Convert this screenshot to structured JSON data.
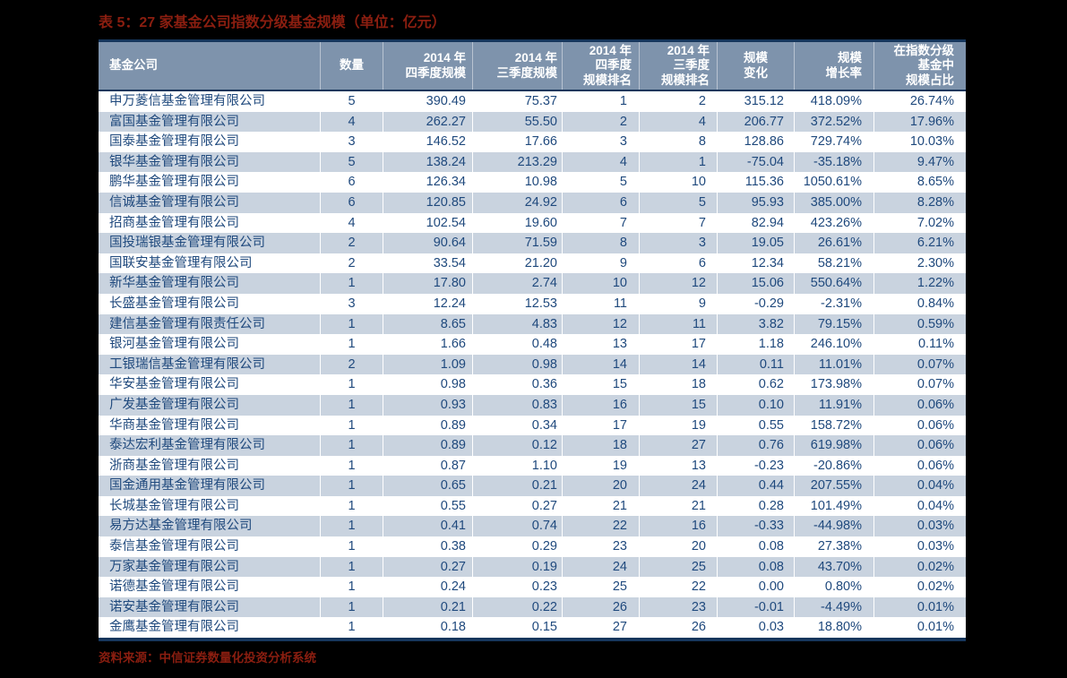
{
  "title": "表 5：27 家基金公司指数分级基金规模（单位：亿元）",
  "source_note": "资料来源：中信证券数量化投资分析系统",
  "colors": {
    "page_background": "#000000",
    "title_red": "#8B1E10",
    "header_background": "#7E93AC",
    "header_text": "#FFFFFF",
    "border_navy": "#16365C",
    "row_white": "#FFFFFF",
    "row_alt_blue": "#C9D3DF",
    "cell_text_navy": "#1F497D"
  },
  "table": {
    "headers": [
      "基金公司",
      "数量",
      "2014 年\n四季度规模",
      "2014 年\n三季度规模",
      "2014 年\n四季度\n规模排名",
      "2014 年\n三季度\n规模排名",
      "规模\n变化",
      "规模\n增长率",
      "在指数分级\n基金中\n规模占比"
    ],
    "rows": [
      [
        "申万菱信基金管理有限公司",
        "5",
        "390.49",
        "75.37",
        "1",
        "2",
        "315.12",
        "418.09%",
        "26.74%"
      ],
      [
        "富国基金管理有限公司",
        "4",
        "262.27",
        "55.50",
        "2",
        "4",
        "206.77",
        "372.52%",
        "17.96%"
      ],
      [
        "国泰基金管理有限公司",
        "3",
        "146.52",
        "17.66",
        "3",
        "8",
        "128.86",
        "729.74%",
        "10.03%"
      ],
      [
        "银华基金管理有限公司",
        "5",
        "138.24",
        "213.29",
        "4",
        "1",
        "-75.04",
        "-35.18%",
        "9.47%"
      ],
      [
        "鹏华基金管理有限公司",
        "6",
        "126.34",
        "10.98",
        "5",
        "10",
        "115.36",
        "1050.61%",
        "8.65%"
      ],
      [
        "信诚基金管理有限公司",
        "6",
        "120.85",
        "24.92",
        "6",
        "5",
        "95.93",
        "385.00%",
        "8.28%"
      ],
      [
        "招商基金管理有限公司",
        "4",
        "102.54",
        "19.60",
        "7",
        "7",
        "82.94",
        "423.26%",
        "7.02%"
      ],
      [
        "国投瑞银基金管理有限公司",
        "2",
        "90.64",
        "71.59",
        "8",
        "3",
        "19.05",
        "26.61%",
        "6.21%"
      ],
      [
        "国联安基金管理有限公司",
        "2",
        "33.54",
        "21.20",
        "9",
        "6",
        "12.34",
        "58.21%",
        "2.30%"
      ],
      [
        "新华基金管理有限公司",
        "1",
        "17.80",
        "2.74",
        "10",
        "12",
        "15.06",
        "550.64%",
        "1.22%"
      ],
      [
        "长盛基金管理有限公司",
        "3",
        "12.24",
        "12.53",
        "11",
        "9",
        "-0.29",
        "-2.31%",
        "0.84%"
      ],
      [
        "建信基金管理有限责任公司",
        "1",
        "8.65",
        "4.83",
        "12",
        "11",
        "3.82",
        "79.15%",
        "0.59%"
      ],
      [
        "银河基金管理有限公司",
        "1",
        "1.66",
        "0.48",
        "13",
        "17",
        "1.18",
        "246.10%",
        "0.11%"
      ],
      [
        "工银瑞信基金管理有限公司",
        "2",
        "1.09",
        "0.98",
        "14",
        "14",
        "0.11",
        "11.01%",
        "0.07%"
      ],
      [
        "华安基金管理有限公司",
        "1",
        "0.98",
        "0.36",
        "15",
        "18",
        "0.62",
        "173.98%",
        "0.07%"
      ],
      [
        "广发基金管理有限公司",
        "1",
        "0.93",
        "0.83",
        "16",
        "15",
        "0.10",
        "11.91%",
        "0.06%"
      ],
      [
        "华商基金管理有限公司",
        "1",
        "0.89",
        "0.34",
        "17",
        "19",
        "0.55",
        "158.72%",
        "0.06%"
      ],
      [
        "泰达宏利基金管理有限公司",
        "1",
        "0.89",
        "0.12",
        "18",
        "27",
        "0.76",
        "619.98%",
        "0.06%"
      ],
      [
        "浙商基金管理有限公司",
        "1",
        "0.87",
        "1.10",
        "19",
        "13",
        "-0.23",
        "-20.86%",
        "0.06%"
      ],
      [
        "国金通用基金管理有限公司",
        "1",
        "0.65",
        "0.21",
        "20",
        "24",
        "0.44",
        "207.55%",
        "0.04%"
      ],
      [
        "长城基金管理有限公司",
        "1",
        "0.55",
        "0.27",
        "21",
        "21",
        "0.28",
        "101.49%",
        "0.04%"
      ],
      [
        "易方达基金管理有限公司",
        "1",
        "0.41",
        "0.74",
        "22",
        "16",
        "-0.33",
        "-44.98%",
        "0.03%"
      ],
      [
        "泰信基金管理有限公司",
        "1",
        "0.38",
        "0.29",
        "23",
        "20",
        "0.08",
        "27.38%",
        "0.03%"
      ],
      [
        "万家基金管理有限公司",
        "1",
        "0.27",
        "0.19",
        "24",
        "25",
        "0.08",
        "43.70%",
        "0.02%"
      ],
      [
        "诺德基金管理有限公司",
        "1",
        "0.24",
        "0.23",
        "25",
        "22",
        "0.00",
        "0.80%",
        "0.02%"
      ],
      [
        "诺安基金管理有限公司",
        "1",
        "0.21",
        "0.22",
        "26",
        "23",
        "-0.01",
        "-4.49%",
        "0.01%"
      ],
      [
        "金鹰基金管理有限公司",
        "1",
        "0.18",
        "0.15",
        "27",
        "26",
        "0.03",
        "18.80%",
        "0.01%"
      ]
    ]
  }
}
